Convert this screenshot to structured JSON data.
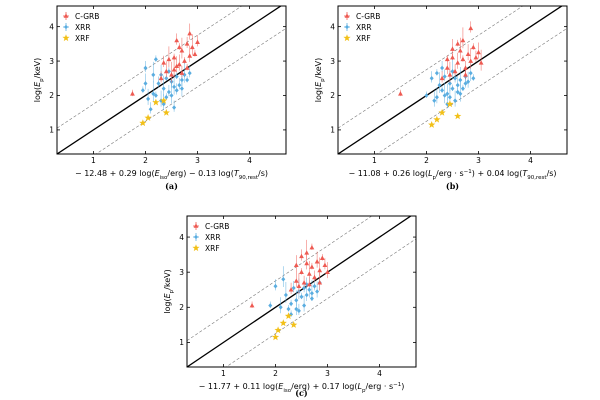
{
  "figure": {
    "colors": {
      "C-GRB": "#ee5a52",
      "XRR": "#5aade0",
      "XRF": "#f2c018",
      "line": "#000000",
      "band": "#777777"
    }
  },
  "chart_data": [
    {
      "type": "scatter",
      "panel": "(a)",
      "ylabel": "log(E_p/keV)",
      "xlabel": "− 12.48 + 0.29 log(E_iso/erg) − 0.13 log(T_90,rest/s)",
      "xlim": [
        0.3,
        4.7
      ],
      "ylim": [
        0.3,
        4.6
      ],
      "xticks": [
        1,
        2,
        3,
        4
      ],
      "yticks": [
        1,
        2,
        3,
        4
      ],
      "legend": {
        "position": "top-left",
        "entries": [
          "C-GRB",
          "XRR",
          "XRF"
        ]
      },
      "lines": {
        "equality": "y = x",
        "bands": [
          -0.75,
          0.75
        ]
      },
      "series": [
        {
          "name": "C-GRB",
          "marker": "triangle",
          "points": [
            [
              1.75,
              2.05
            ],
            [
              2.3,
              2.5
            ],
            [
              2.4,
              2.7
            ],
            [
              2.5,
              2.6
            ],
            [
              2.55,
              3.1
            ],
            [
              2.6,
              3.6
            ],
            [
              2.65,
              2.9
            ],
            [
              2.7,
              3.3
            ],
            [
              2.75,
              3.0
            ],
            [
              2.8,
              3.5
            ],
            [
              2.85,
              3.15
            ],
            [
              2.9,
              3.4
            ],
            [
              2.95,
              3.2
            ],
            [
              2.7,
              2.65
            ],
            [
              2.6,
              2.85
            ],
            [
              2.45,
              3.05
            ],
            [
              2.8,
              2.8
            ],
            [
              3.0,
              3.55
            ],
            [
              2.85,
              3.8
            ],
            [
              2.55,
              2.75
            ],
            [
              2.65,
              3.4
            ],
            [
              2.35,
              2.95
            ]
          ]
        },
        {
          "name": "XRR",
          "marker": "diamond",
          "points": [
            [
              1.95,
              2.15
            ],
            [
              2.0,
              2.8
            ],
            [
              2.05,
              1.9
            ],
            [
              2.15,
              2.6
            ],
            [
              2.2,
              2.0
            ],
            [
              2.25,
              2.35
            ],
            [
              2.3,
              1.85
            ],
            [
              2.35,
              2.2
            ],
            [
              2.4,
              2.5
            ],
            [
              2.45,
              2.1
            ],
            [
              2.5,
              2.4
            ],
            [
              2.55,
              2.25
            ],
            [
              2.6,
              2.55
            ],
            [
              2.65,
              2.3
            ],
            [
              2.7,
              2.45
            ],
            [
              2.75,
              2.6
            ],
            [
              2.2,
              3.05
            ],
            [
              2.1,
              1.6
            ],
            [
              2.35,
              1.75
            ],
            [
              2.5,
              2.0
            ],
            [
              2.45,
              2.7
            ],
            [
              2.6,
              2.15
            ],
            [
              2.3,
              2.6
            ],
            [
              2.7,
              2.2
            ],
            [
              2.8,
              2.45
            ],
            [
              2.85,
              2.65
            ],
            [
              2.0,
              2.35
            ],
            [
              2.15,
              2.05
            ],
            [
              2.4,
              1.95
            ],
            [
              2.55,
              1.65
            ]
          ]
        },
        {
          "name": "XRF",
          "marker": "star",
          "points": [
            [
              1.95,
              1.2
            ],
            [
              2.05,
              1.35
            ],
            [
              2.2,
              1.8
            ],
            [
              2.35,
              1.85
            ],
            [
              2.4,
              1.5
            ]
          ]
        }
      ]
    },
    {
      "type": "scatter",
      "panel": "(b)",
      "ylabel": "log(E_p/keV)",
      "xlabel": "− 11.08 + 0.26 log(L_p/erg · s^−1) + 0.04 log(T_90,rest/s)",
      "xlim": [
        0.3,
        4.7
      ],
      "ylim": [
        0.3,
        4.6
      ],
      "xticks": [
        1,
        2,
        3,
        4
      ],
      "yticks": [
        1,
        2,
        3,
        4
      ],
      "legend": {
        "position": "top-left",
        "entries": [
          "C-GRB",
          "XRR",
          "XRF"
        ]
      },
      "lines": {
        "equality": "y = x",
        "bands": [
          -0.75,
          0.75
        ]
      },
      "series": [
        {
          "name": "C-GRB",
          "marker": "triangle",
          "points": [
            [
              1.5,
              2.05
            ],
            [
              2.3,
              2.5
            ],
            [
              2.4,
              2.8
            ],
            [
              2.45,
              2.6
            ],
            [
              2.5,
              3.1
            ],
            [
              2.55,
              2.7
            ],
            [
              2.6,
              2.95
            ],
            [
              2.65,
              3.3
            ],
            [
              2.7,
              3.05
            ],
            [
              2.75,
              2.8
            ],
            [
              2.8,
              3.2
            ],
            [
              2.85,
              3.0
            ],
            [
              2.9,
              3.4
            ],
            [
              2.95,
              3.1
            ],
            [
              3.0,
              3.25
            ],
            [
              2.7,
              3.6
            ],
            [
              2.6,
              3.5
            ],
            [
              2.85,
              3.95
            ],
            [
              2.5,
              3.35
            ],
            [
              3.05,
              2.95
            ],
            [
              2.4,
              3.05
            ],
            [
              2.75,
              2.6
            ]
          ]
        },
        {
          "name": "XRR",
          "marker": "diamond",
          "points": [
            [
              2.0,
              2.0
            ],
            [
              2.1,
              2.5
            ],
            [
              2.2,
              1.95
            ],
            [
              2.25,
              2.3
            ],
            [
              2.3,
              2.15
            ],
            [
              2.35,
              2.55
            ],
            [
              2.4,
              2.05
            ],
            [
              2.45,
              2.35
            ],
            [
              2.5,
              2.2
            ],
            [
              2.55,
              2.5
            ],
            [
              2.6,
              2.3
            ],
            [
              2.65,
              2.45
            ],
            [
              2.7,
              2.2
            ],
            [
              2.75,
              2.55
            ],
            [
              2.8,
              2.4
            ],
            [
              2.85,
              2.65
            ],
            [
              2.9,
              2.5
            ],
            [
              2.4,
              1.75
            ],
            [
              2.55,
              1.85
            ],
            [
              2.65,
              2.05
            ],
            [
              2.2,
              2.65
            ],
            [
              2.3,
              2.8
            ],
            [
              2.15,
              1.85
            ],
            [
              2.5,
              2.7
            ],
            [
              2.6,
              2.1
            ],
            [
              2.75,
              2.35
            ],
            [
              2.45,
              1.95
            ],
            [
              2.35,
              2.0
            ]
          ]
        },
        {
          "name": "XRF",
          "marker": "star",
          "points": [
            [
              2.1,
              1.15
            ],
            [
              2.2,
              1.3
            ],
            [
              2.3,
              1.5
            ],
            [
              2.45,
              1.75
            ],
            [
              2.6,
              1.4
            ]
          ]
        }
      ]
    },
    {
      "type": "scatter",
      "panel": "(c)",
      "ylabel": "log(E_p/keV)",
      "xlabel": "− 11.77 + 0.11 log(E_iso/erg) + 0.17 log(L_p/erg · s^−1)",
      "xlim": [
        0.3,
        4.7
      ],
      "ylim": [
        0.3,
        4.6
      ],
      "xticks": [
        1,
        2,
        3,
        4
      ],
      "yticks": [
        1,
        2,
        3,
        4
      ],
      "legend": {
        "position": "top-left",
        "entries": [
          "C-GRB",
          "XRR",
          "XRF"
        ]
      },
      "lines": {
        "equality": "y = x",
        "bands": [
          -0.75,
          0.75
        ]
      },
      "series": [
        {
          "name": "C-GRB",
          "marker": "triangle",
          "points": [
            [
              1.55,
              2.05
            ],
            [
              2.3,
              2.5
            ],
            [
              2.4,
              2.75
            ],
            [
              2.45,
              2.6
            ],
            [
              2.5,
              3.0
            ],
            [
              2.55,
              2.7
            ],
            [
              2.6,
              3.25
            ],
            [
              2.65,
              2.95
            ],
            [
              2.7,
              3.15
            ],
            [
              2.75,
              2.85
            ],
            [
              2.8,
              3.3
            ],
            [
              2.85,
              3.05
            ],
            [
              2.9,
              3.4
            ],
            [
              2.95,
              3.2
            ],
            [
              3.0,
              3.0
            ],
            [
              2.6,
              3.55
            ],
            [
              2.7,
              3.7
            ],
            [
              2.5,
              3.45
            ],
            [
              2.4,
              3.2
            ],
            [
              2.85,
              2.7
            ],
            [
              2.65,
              2.65
            ]
          ]
        },
        {
          "name": "XRR",
          "marker": "diamond",
          "points": [
            [
              1.9,
              2.05
            ],
            [
              2.0,
              2.6
            ],
            [
              2.1,
              2.0
            ],
            [
              2.2,
              2.35
            ],
            [
              2.3,
              2.1
            ],
            [
              2.35,
              2.55
            ],
            [
              2.4,
              2.2
            ],
            [
              2.45,
              2.45
            ],
            [
              2.5,
              2.3
            ],
            [
              2.55,
              2.55
            ],
            [
              2.6,
              2.35
            ],
            [
              2.65,
              2.5
            ],
            [
              2.7,
              2.25
            ],
            [
              2.75,
              2.6
            ],
            [
              2.8,
              2.45
            ],
            [
              2.85,
              2.7
            ],
            [
              2.3,
              1.8
            ],
            [
              2.45,
              1.9
            ],
            [
              2.55,
              2.05
            ],
            [
              2.15,
              2.8
            ],
            [
              2.25,
              1.95
            ],
            [
              2.6,
              2.65
            ],
            [
              2.4,
              1.95
            ],
            [
              2.7,
              2.4
            ]
          ]
        },
        {
          "name": "XRF",
          "marker": "star",
          "points": [
            [
              2.0,
              1.15
            ],
            [
              2.05,
              1.35
            ],
            [
              2.15,
              1.55
            ],
            [
              2.25,
              1.75
            ],
            [
              2.35,
              1.5
            ]
          ]
        }
      ]
    }
  ]
}
